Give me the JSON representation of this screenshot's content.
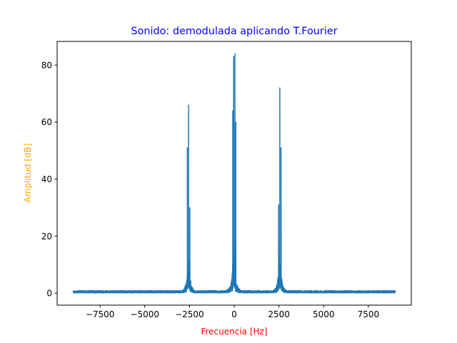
{
  "chart_data": {
    "type": "line",
    "title": "Sonido: demodulada aplicando T.Fourier",
    "xlabel": "Frecuencia [Hz]",
    "ylabel": "Amplitud [dB]",
    "xlim": [
      -9900,
      9900
    ],
    "ylim": [
      -4.2,
      88.3
    ],
    "x_ticks": [
      -7500,
      -5000,
      -2500,
      0,
      2500,
      5000,
      7500
    ],
    "x_tick_labels": [
      "−7500",
      "−5000",
      "−2500",
      "0",
      "2500",
      "5000",
      "7500"
    ],
    "y_ticks": [
      0,
      20,
      40,
      60,
      80
    ],
    "y_tick_labels": [
      "0",
      "20",
      "40",
      "60",
      "80"
    ],
    "grid": false,
    "legend": "none",
    "x_range": [
      -9000,
      9000
    ],
    "peaks": [
      {
        "center": -2550,
        "max": 66,
        "secondary": [
          [
            -2620,
            51
          ],
          [
            -2480,
            30
          ]
        ]
      },
      {
        "center": -30,
        "max": 83,
        "secondary": [
          [
            40,
            84
          ],
          [
            -80,
            64
          ],
          [
            90,
            60
          ]
        ]
      },
      {
        "center": 2550,
        "max": 72,
        "secondary": [
          [
            2620,
            51
          ],
          [
            2480,
            31
          ]
        ]
      }
    ],
    "noise_floor": 0.3,
    "colors": {
      "series": "#1f77b4",
      "title": "#0000ff",
      "xlabel": "#ff0000",
      "ylabel": "#ffa500",
      "axes": "#000000"
    }
  }
}
